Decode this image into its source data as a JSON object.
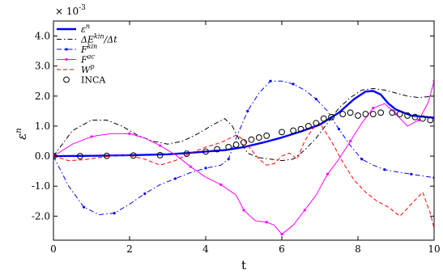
{
  "chart_data": {
    "type": "line",
    "title": "",
    "xlabel": "t",
    "ylabel": "ε^n",
    "xlim": [
      0,
      10
    ],
    "ylim": [
      -2.8,
      4.5
    ],
    "scale_label": "× 10",
    "scale_exponent": "-3",
    "xticks": [
      0,
      2,
      4,
      6,
      8,
      10
    ],
    "xtick_labels": [
      "0",
      "2",
      "4",
      "6",
      "8",
      "10"
    ],
    "yticks": [
      -2.0,
      -1.0,
      0.0,
      1.0,
      2.0,
      3.0,
      4.0
    ],
    "ytick_labels": [
      "-2.0",
      "-1.0",
      "0.0",
      "1.0",
      "2.0",
      "3.0",
      "4.0"
    ],
    "legend_position": "top-left",
    "grid": false,
    "series": [
      {
        "name": "ε^n",
        "color": "#0000ff",
        "style": "solid-thick",
        "x": [
          0,
          1,
          2,
          3,
          3.5,
          4,
          4.5,
          5,
          5.5,
          6,
          6.5,
          7,
          7.5,
          7.9,
          8.2,
          8.4,
          8.6,
          8.8,
          9,
          9.4,
          10
        ],
        "y": [
          0.0,
          0.01,
          0.03,
          0.06,
          0.1,
          0.15,
          0.2,
          0.3,
          0.45,
          0.62,
          0.82,
          1.05,
          1.45,
          1.9,
          2.15,
          2.17,
          2.05,
          1.75,
          1.55,
          1.35,
          1.28
        ]
      },
      {
        "name": "ΔE^kin/Δt",
        "color": "#000000",
        "style": "dashdot",
        "x": [
          0,
          0.5,
          1,
          1.4,
          1.8,
          2.2,
          2.6,
          3,
          3.4,
          3.8,
          4.2,
          4.5,
          4.7,
          4.9,
          5.1,
          5.4,
          5.7,
          6,
          6.3,
          6.6,
          6.9,
          7.2,
          7.5,
          7.8,
          8.1,
          8.4,
          8.7,
          9,
          9.3,
          9.6,
          10
        ],
        "y": [
          0.0,
          0.85,
          1.2,
          1.2,
          1.0,
          0.7,
          0.5,
          0.4,
          0.5,
          0.75,
          1.05,
          1.25,
          1.0,
          0.5,
          0.1,
          -0.05,
          -0.1,
          -0.15,
          -0.1,
          0.2,
          0.6,
          1.1,
          1.6,
          1.95,
          2.2,
          2.25,
          2.2,
          2.1,
          2.0,
          1.95,
          2.0
        ]
      },
      {
        "name": "F^kin",
        "color": "#0000ff",
        "style": "dashdot-dots",
        "x": [
          0,
          0.4,
          0.8,
          1.2,
          1.6,
          2.0,
          2.4,
          2.8,
          3.2,
          3.6,
          4.0,
          4.4,
          4.6,
          4.8,
          5.1,
          5.4,
          5.7,
          6.0,
          6.3,
          6.6,
          6.9,
          7.2,
          7.5,
          7.8,
          8.1,
          8.4,
          8.7,
          9.0,
          9.4,
          9.8,
          10
        ],
        "y": [
          0.0,
          -1.0,
          -1.7,
          -1.95,
          -1.9,
          -1.6,
          -1.25,
          -0.95,
          -0.75,
          -0.55,
          -0.4,
          -0.3,
          -0.1,
          0.6,
          1.5,
          2.1,
          2.5,
          2.5,
          2.4,
          2.2,
          1.9,
          1.5,
          0.9,
          0.35,
          -0.1,
          -0.3,
          -0.45,
          -0.52,
          -0.6,
          -0.68,
          -0.72
        ]
      },
      {
        "name": "F^ac",
        "color": "#ff00ff",
        "style": "solid-dots",
        "x": [
          0,
          0.5,
          1.0,
          1.5,
          2.0,
          2.4,
          2.8,
          3.2,
          3.6,
          4.0,
          4.4,
          4.8,
          5.0,
          5.3,
          5.6,
          5.8,
          6.0,
          6.3,
          6.6,
          6.9,
          7.2,
          7.5,
          7.8,
          8.1,
          8.4,
          8.7,
          9.0,
          9.3,
          9.6,
          9.85,
          10
        ],
        "y": [
          0.0,
          0.4,
          0.65,
          0.75,
          0.75,
          0.6,
          0.35,
          0.05,
          -0.35,
          -0.7,
          -0.95,
          -1.3,
          -1.8,
          -2.15,
          -2.2,
          -2.3,
          -2.6,
          -2.3,
          -1.8,
          -1.3,
          -0.6,
          -0.1,
          0.5,
          1.1,
          1.6,
          1.75,
          1.4,
          1.0,
          1.2,
          1.8,
          2.5
        ]
      },
      {
        "name": "W^p",
        "color": "#ff0000",
        "style": "dashed",
        "x": [
          0,
          0.4,
          0.8,
          1.2,
          1.6,
          2.0,
          2.4,
          2.8,
          3.2,
          3.6,
          4.0,
          4.4,
          4.8,
          5.0,
          5.2,
          5.4,
          5.6,
          5.8,
          6.0,
          6.2,
          6.4,
          6.6,
          6.8,
          7.0,
          7.3,
          7.6,
          7.9,
          8.2,
          8.5,
          8.8,
          9.1,
          9.4,
          9.7,
          9.9,
          10
        ],
        "y": [
          0.0,
          -0.15,
          -0.12,
          -0.05,
          0.02,
          0.02,
          -0.1,
          -0.3,
          -0.15,
          0.1,
          0.3,
          0.45,
          0.7,
          0.55,
          0.2,
          -0.1,
          -0.3,
          -0.25,
          0.0,
          0.1,
          -0.1,
          0.5,
          0.9,
          1.1,
          0.5,
          -0.2,
          -0.8,
          -1.2,
          -1.5,
          -1.7,
          -2.0,
          -1.6,
          -1.2,
          -1.9,
          -2.4
        ]
      },
      {
        "name": "INCA",
        "color": "#000000",
        "style": "markers-circle",
        "x": [
          0,
          0.7,
          1.4,
          2.1,
          2.8,
          3.5,
          4.0,
          4.3,
          4.6,
          4.8,
          5.0,
          5.2,
          5.4,
          5.6,
          6.0,
          6.3,
          6.5,
          6.7,
          6.9,
          7.1,
          7.3,
          7.6,
          7.8,
          8.0,
          8.2,
          8.4,
          8.6,
          8.9,
          9.1,
          9.3,
          9.5,
          9.7,
          9.9
        ],
        "y": [
          0.0,
          0.0,
          0.01,
          0.02,
          0.03,
          0.08,
          0.15,
          0.23,
          0.3,
          0.38,
          0.46,
          0.55,
          0.62,
          0.68,
          0.8,
          0.85,
          0.9,
          1.0,
          1.1,
          1.25,
          1.3,
          1.4,
          1.45,
          1.35,
          1.4,
          1.4,
          1.45,
          1.45,
          1.4,
          1.35,
          1.3,
          1.25,
          1.2
        ]
      }
    ]
  }
}
